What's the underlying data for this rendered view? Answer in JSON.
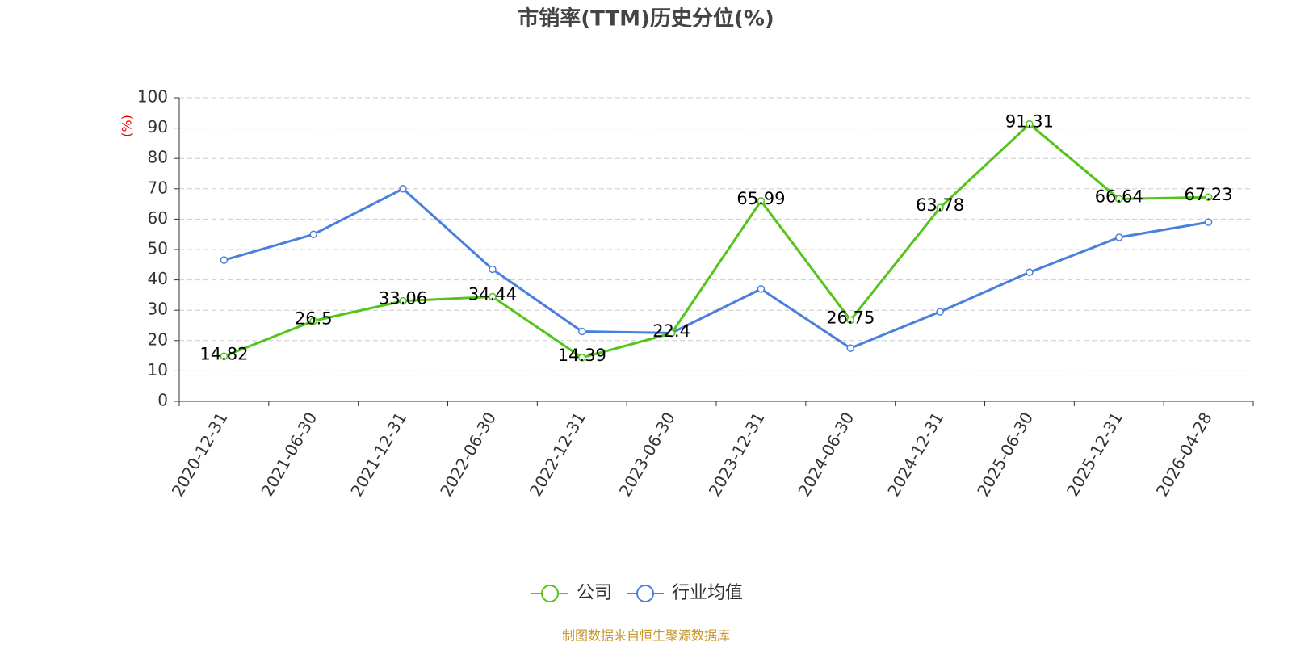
{
  "chart_data": {
    "type": "line",
    "title": "市销率(TTM)历史分位(%)",
    "y_label": "(%)",
    "categories": [
      "2020-12-31",
      "2021-06-30",
      "2021-12-31",
      "2022-06-30",
      "2022-12-31",
      "2023-06-30",
      "2023-12-31",
      "2024-06-30",
      "2024-12-31",
      "2025-06-30",
      "2025-12-31",
      "2026-04-28"
    ],
    "series": [
      {
        "name": "公司",
        "color": "#52c41a",
        "data_labels": true,
        "values": [
          14.82,
          26.5,
          33.06,
          34.44,
          14.39,
          22.4,
          65.99,
          26.75,
          63.78,
          91.31,
          66.64,
          67.23
        ]
      },
      {
        "name": "行业均值",
        "color": "#4a7fdc",
        "data_labels": false,
        "values": [
          46.5,
          55,
          70,
          43.5,
          23,
          22.5,
          37,
          17.5,
          29.5,
          42.5,
          54,
          59
        ]
      }
    ],
    "ylim": [
      0,
      100
    ],
    "yticks": [
      0,
      10,
      20,
      30,
      40,
      50,
      60,
      70,
      80,
      90,
      100
    ],
    "grid": true,
    "legend": "bottom",
    "source": "制图数据来自恒生聚源数据库"
  }
}
